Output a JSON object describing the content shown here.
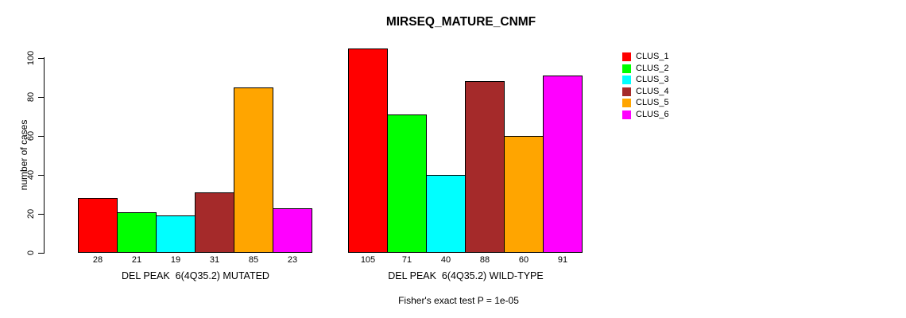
{
  "chart_data": {
    "type": "bar",
    "title": "MIRSEQ_MATURE_CNMF",
    "ylabel": "number of cases",
    "ylim": [
      0,
      110
    ],
    "yticks": [
      0,
      20,
      40,
      60,
      80,
      100
    ],
    "grid": false,
    "legend_position": "top-right-outside",
    "series": [
      {
        "name": "CLUS_1",
        "color": "#FF0000"
      },
      {
        "name": "CLUS_2",
        "color": "#00FF00"
      },
      {
        "name": "CLUS_3",
        "color": "#00FFFF"
      },
      {
        "name": "CLUS_4",
        "color": "#A52A2A"
      },
      {
        "name": "CLUS_5",
        "color": "#FFA500"
      },
      {
        "name": "CLUS_6",
        "color": "#FF00FF"
      }
    ],
    "groups": [
      {
        "label": "DEL PEAK  6(4Q35.2) MUTATED",
        "values": [
          28,
          21,
          19,
          31,
          85,
          23
        ]
      },
      {
        "label": "DEL PEAK  6(4Q35.2) WILD-TYPE",
        "values": [
          105,
          71,
          40,
          88,
          60,
          91
        ]
      }
    ],
    "footnote": "Fisher's exact test P = 1e-05"
  }
}
